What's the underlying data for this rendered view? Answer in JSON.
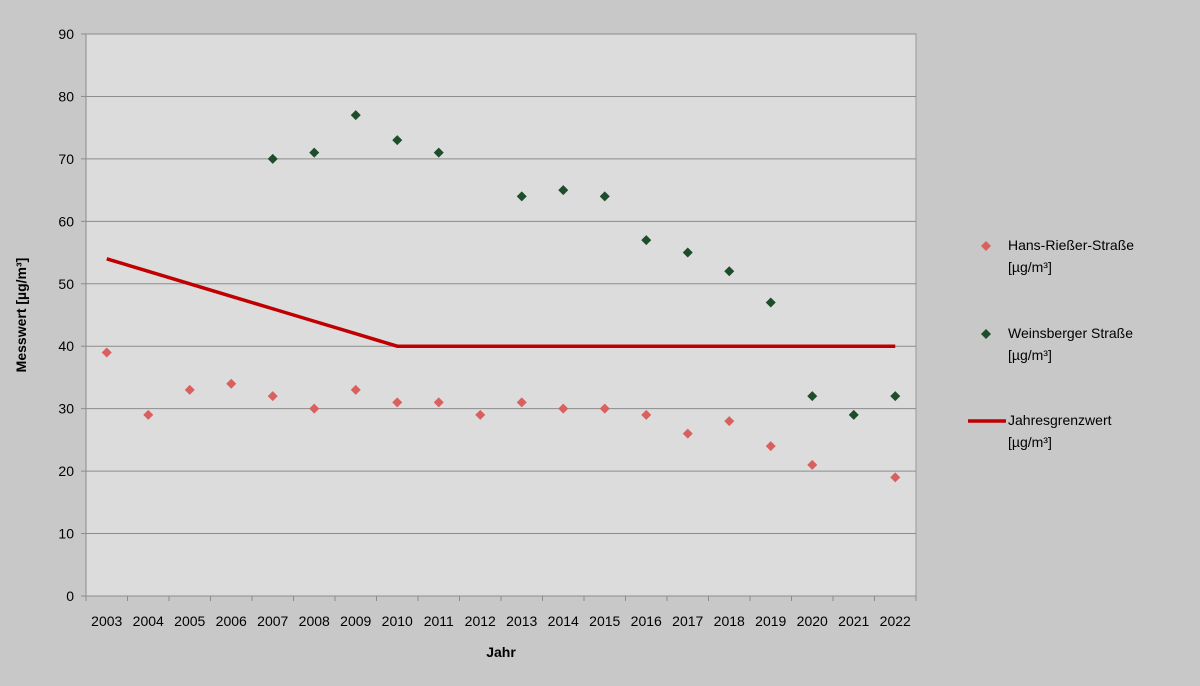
{
  "chart_data": {
    "type": "scatter",
    "title": "",
    "xlabel": "Jahr",
    "ylabel": "Messwert [µg/m³]",
    "ylim": [
      0,
      90
    ],
    "yticks": [
      0,
      10,
      20,
      30,
      40,
      50,
      60,
      70,
      80,
      90
    ],
    "categories": [
      "2003",
      "2004",
      "2005",
      "2006",
      "2007",
      "2008",
      "2009",
      "2010",
      "2011",
      "2012",
      "2013",
      "2014",
      "2015",
      "2016",
      "2017",
      "2018",
      "2019",
      "2020",
      "2021",
      "2022"
    ],
    "grid": true,
    "legend_position": "right",
    "series": [
      {
        "name": "Hans-Rießer-Straße",
        "name_unit": "[µg/m³]",
        "kind": "scatter",
        "color": "#d9605f",
        "values": [
          39,
          29,
          33,
          34,
          32,
          30,
          33,
          31,
          31,
          29,
          31,
          30,
          30,
          29,
          26,
          28,
          24,
          21,
          null,
          19
        ]
      },
      {
        "name": "Weinsberger Straße",
        "name_unit": "[µg/m³]",
        "kind": "scatter",
        "color": "#1e4d2b",
        "values": [
          null,
          null,
          null,
          null,
          70,
          71,
          77,
          73,
          71,
          null,
          64,
          65,
          64,
          57,
          55,
          52,
          47,
          32,
          29,
          32
        ]
      },
      {
        "name": "Jahresgrenzwert",
        "name_unit": "[µg/m³]",
        "kind": "line",
        "color": "#c00000",
        "values": [
          54,
          52,
          50,
          48,
          46,
          44,
          42,
          40,
          40,
          40,
          40,
          40,
          40,
          40,
          40,
          40,
          40,
          40,
          40,
          40
        ]
      }
    ]
  }
}
